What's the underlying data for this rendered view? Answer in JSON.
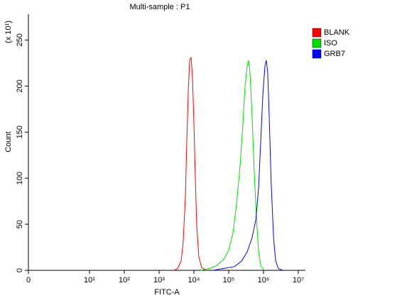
{
  "chart_data": {
    "type": "line",
    "title": "Multi-sample : P1",
    "x_label": "FITC-A",
    "y_label": "Count",
    "y_multiplier": "(x 10¹)",
    "xscale": "logicle",
    "xlim": [
      0,
      13000000
    ],
    "xticks": [
      0,
      {
        "value": 10,
        "label": "10¹"
      },
      {
        "value": 100,
        "label": "10²"
      },
      {
        "value": 1000,
        "label": "10³"
      },
      {
        "value": 10000,
        "label": "10⁴"
      },
      {
        "value": 100000,
        "label": "10⁵"
      },
      {
        "value": 1000000,
        "label": "10⁶"
      },
      {
        "value": 10000000,
        "label": "10⁷"
      }
    ],
    "ylim": [
      0,
      278
    ],
    "yticks": [
      0,
      50,
      100,
      150,
      200,
      250
    ],
    "legend": "right",
    "series": [
      {
        "name": "BLANK",
        "color": "#ff0000",
        "x": [
          2700,
          3400,
          4300,
          4900,
          5700,
          6250,
          6900,
          7550,
          8290,
          9100,
          10000,
          11000,
          12000,
          13800,
          16600,
          22400
        ],
        "values": [
          0,
          2,
          10,
          30,
          80,
          140,
          195,
          228,
          231,
          210,
          160,
          100,
          50,
          15,
          3,
          0
        ]
      },
      {
        "name": "ISO",
        "color": "#00e000",
        "x": [
          15900,
          28000,
          44700,
          71700,
          100000,
          132000,
          166000,
          214000,
          257000,
          295000,
          339000,
          372000,
          407000,
          467000,
          537000,
          630000,
          724000,
          832000,
          1050000
        ],
        "values": [
          0,
          2,
          5,
          12,
          22,
          40,
          70,
          115,
          160,
          200,
          222,
          228,
          215,
          170,
          110,
          55,
          20,
          5,
          0
        ]
      },
      {
        "name": "GRB7",
        "color": "#0000ff",
        "x": [
          35500,
          71700,
          145000,
          234000,
          339000,
          467000,
          603000,
          724000,
          832000,
          955000,
          1100000,
          1200000,
          1320000,
          1450000,
          1660000,
          1950000,
          2240000,
          2690000,
          3550000
        ],
        "values": [
          0,
          2,
          4,
          10,
          20,
          35,
          55,
          90,
          140,
          190,
          222,
          228,
          215,
          170,
          95,
          35,
          10,
          2,
          0
        ]
      }
    ]
  }
}
